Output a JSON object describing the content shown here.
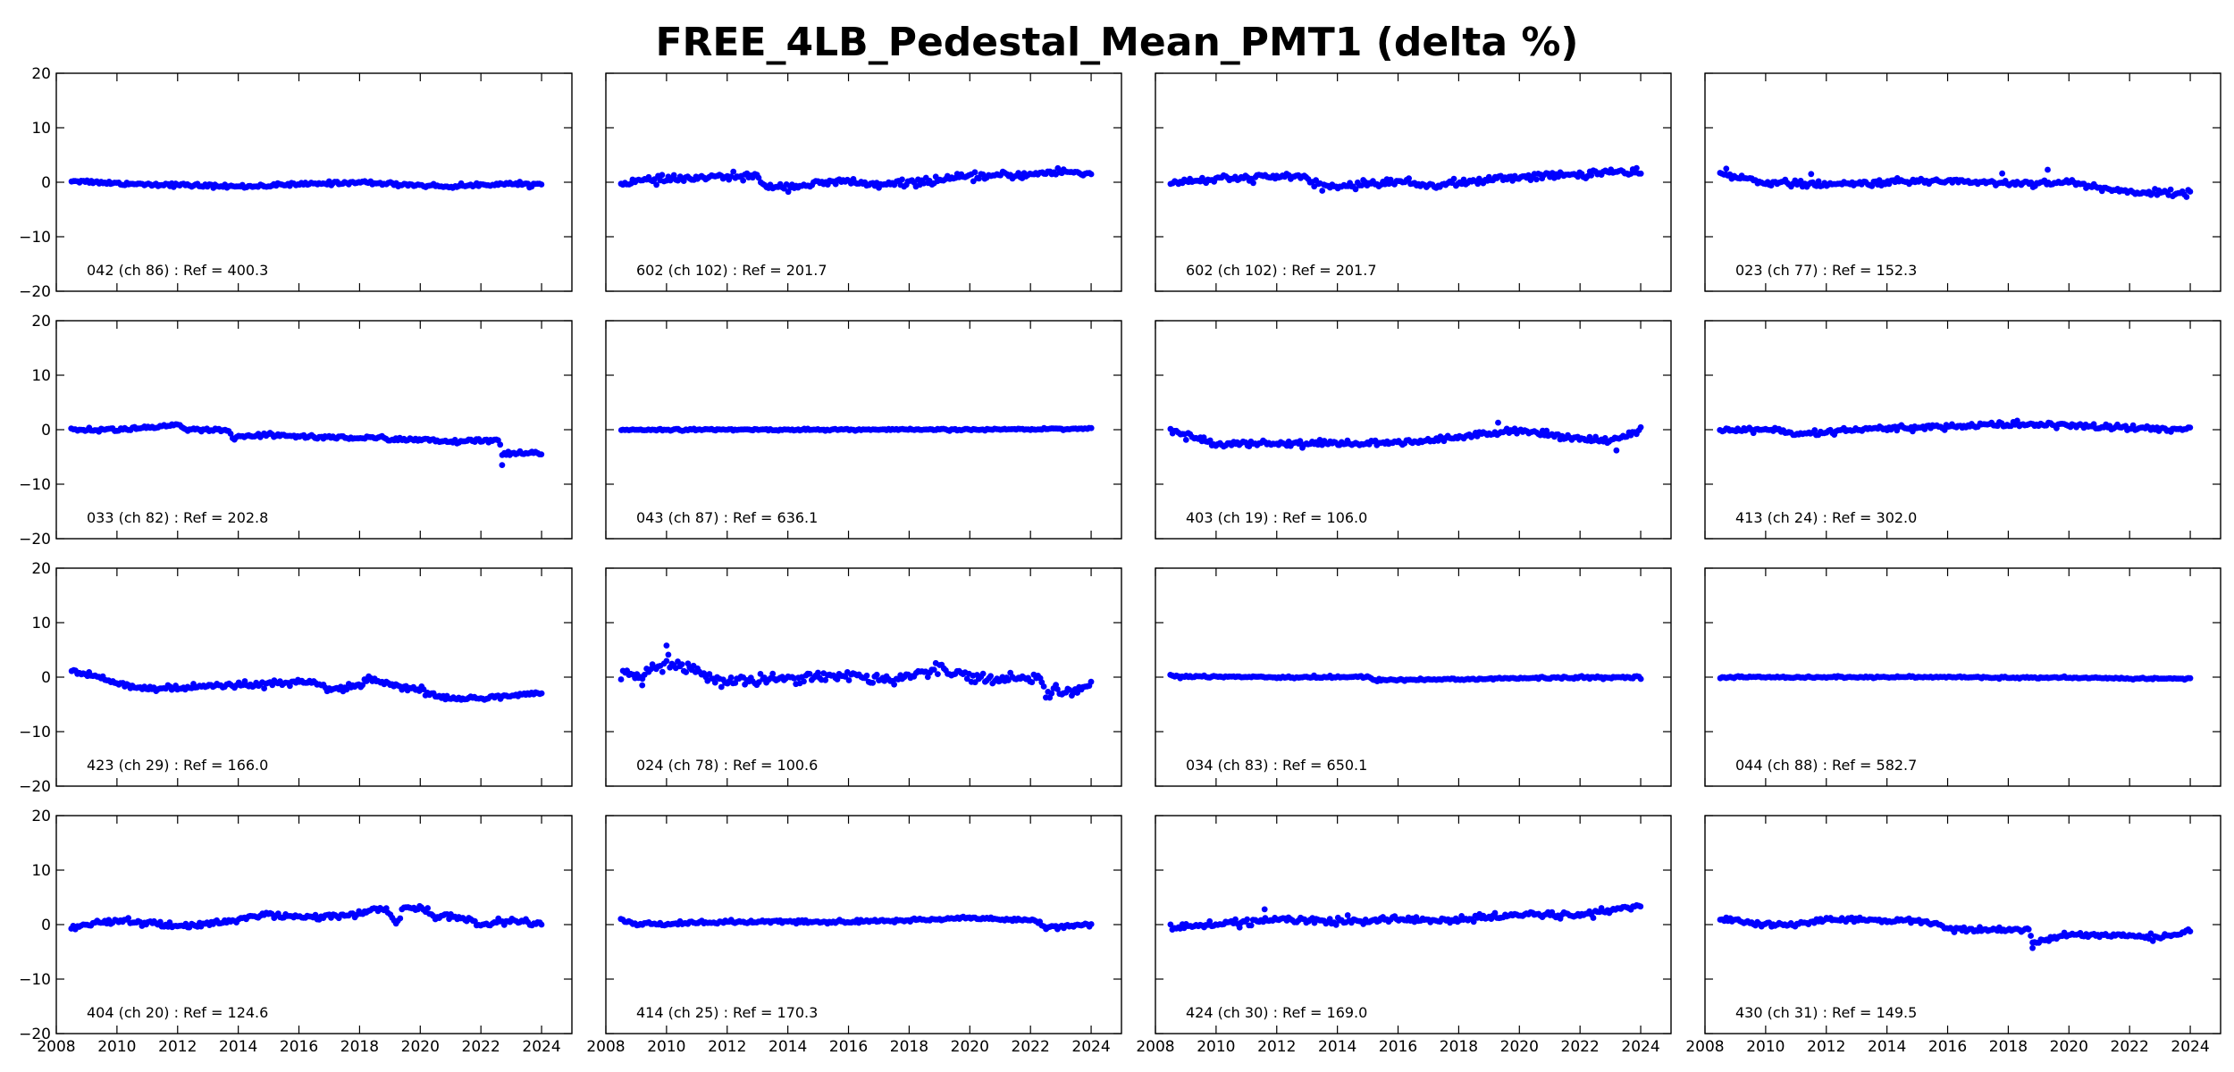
{
  "title": "FREE_4LB_Pedestal_Mean_PMT1 (delta %)",
  "colors": {
    "points": "#0000ff",
    "axes": "#000000",
    "background": "#ffffff"
  },
  "chart_data": [
    {
      "type": "scatter",
      "label": "042 (ch 86) : Ref = 400.3",
      "pattern": "flat",
      "xlim": [
        2008,
        2025
      ],
      "ylim": [
        -20,
        20
      ],
      "xticks": [
        2008,
        2010,
        2012,
        2014,
        2016,
        2018,
        2020,
        2022,
        2024
      ],
      "yticks": [
        -20,
        -10,
        0,
        10,
        20
      ],
      "anchors": [
        [
          2008.5,
          0.3
        ],
        [
          2010,
          -0.2
        ],
        [
          2012,
          -0.5
        ],
        [
          2014,
          -0.8
        ],
        [
          2016,
          -0.4
        ],
        [
          2018,
          0.0
        ],
        [
          2019,
          -0.3
        ],
        [
          2021,
          -0.8
        ],
        [
          2022.5,
          -0.3
        ],
        [
          2024,
          -0.4
        ]
      ],
      "noise": 0.3,
      "spikes": []
    },
    {
      "type": "scatter",
      "label": "602 (ch 102) : Ref = 201.7",
      "pattern": "wavy",
      "xlim": [
        2008,
        2025
      ],
      "ylim": [
        -20,
        20
      ],
      "xticks": [
        2008,
        2010,
        2012,
        2014,
        2016,
        2018,
        2020,
        2022,
        2024
      ],
      "yticks": [
        -20,
        -10,
        0,
        10,
        20
      ],
      "anchors": [
        [
          2008.5,
          0
        ],
        [
          2010,
          0.5
        ],
        [
          2012,
          1.0
        ],
        [
          2013,
          1.2
        ],
        [
          2013.1,
          -0.6
        ],
        [
          2014,
          -0.8
        ],
        [
          2016,
          0.2
        ],
        [
          2017,
          -0.6
        ],
        [
          2019,
          0.4
        ],
        [
          2020,
          1.0
        ],
        [
          2022,
          1.4
        ],
        [
          2023,
          2.0
        ],
        [
          2024,
          1.5
        ]
      ],
      "noise": 0.6,
      "spikes": []
    },
    {
      "type": "scatter",
      "label": "602 (ch 102) : Ref = 201.7",
      "pattern": "wavy",
      "xlim": [
        2008,
        2025
      ],
      "ylim": [
        -20,
        20
      ],
      "xticks": [
        2008,
        2010,
        2012,
        2014,
        2016,
        2018,
        2020,
        2022,
        2024
      ],
      "yticks": [
        -20,
        -10,
        0,
        10,
        20
      ],
      "anchors": [
        [
          2008.5,
          0
        ],
        [
          2010,
          0.5
        ],
        [
          2012,
          1.0
        ],
        [
          2013,
          1.2
        ],
        [
          2013.1,
          -0.6
        ],
        [
          2014,
          -0.8
        ],
        [
          2016,
          0.2
        ],
        [
          2017,
          -0.6
        ],
        [
          2019,
          0.4
        ],
        [
          2020,
          1.0
        ],
        [
          2022,
          1.4
        ],
        [
          2023,
          2.0
        ],
        [
          2024,
          1.5
        ]
      ],
      "noise": 0.6,
      "spikes": []
    },
    {
      "type": "scatter",
      "label": "023 (ch 77) : Ref = 152.3",
      "pattern": "declining",
      "xlim": [
        2008,
        2025
      ],
      "ylim": [
        -20,
        20
      ],
      "xticks": [
        2008,
        2010,
        2012,
        2014,
        2016,
        2018,
        2020,
        2022,
        2024
      ],
      "yticks": [
        -20,
        -10,
        0,
        10,
        20
      ],
      "anchors": [
        [
          2008.5,
          1.5
        ],
        [
          2010,
          0
        ],
        [
          2012,
          -0.5
        ],
        [
          2014,
          0
        ],
        [
          2016,
          0.3
        ],
        [
          2018,
          -0.2
        ],
        [
          2020,
          0
        ],
        [
          2021,
          -1.0
        ],
        [
          2022,
          -1.8
        ],
        [
          2024,
          -2.0
        ]
      ],
      "noise": 0.5,
      "spikes": [
        [
          2008.7,
          2.5
        ],
        [
          2011.5,
          1.5
        ],
        [
          2017.8,
          1.6
        ],
        [
          2019.3,
          2.3
        ]
      ]
    },
    {
      "type": "scatter",
      "label": "033 (ch 82) : Ref = 202.8",
      "pattern": "step-down",
      "xlim": [
        2008,
        2025
      ],
      "ylim": [
        -20,
        20
      ],
      "xticks": [
        2008,
        2010,
        2012,
        2014,
        2016,
        2018,
        2020,
        2022,
        2024
      ],
      "yticks": [
        -20,
        -10,
        0,
        10,
        20
      ],
      "anchors": [
        [
          2008.5,
          0
        ],
        [
          2010,
          0
        ],
        [
          2012,
          0.8
        ],
        [
          2012.2,
          0
        ],
        [
          2013.7,
          -0.2
        ],
        [
          2013.8,
          -1.5
        ],
        [
          2015,
          -1.0
        ],
        [
          2017,
          -1.4
        ],
        [
          2019,
          -1.6
        ],
        [
          2021,
          -2.2
        ],
        [
          2022.6,
          -2.0
        ],
        [
          2022.7,
          -4.5
        ],
        [
          2024,
          -4.3
        ]
      ],
      "noise": 0.35,
      "spikes": [
        [
          2022.7,
          -6.5
        ]
      ]
    },
    {
      "type": "scatter",
      "label": "043 (ch 87) : Ref = 636.1",
      "pattern": "flat",
      "xlim": [
        2008,
        2025
      ],
      "ylim": [
        -20,
        20
      ],
      "xticks": [
        2008,
        2010,
        2012,
        2014,
        2016,
        2018,
        2020,
        2022,
        2024
      ],
      "yticks": [
        -20,
        -10,
        0,
        10,
        20
      ],
      "anchors": [
        [
          2008.5,
          0
        ],
        [
          2012,
          0
        ],
        [
          2016,
          0
        ],
        [
          2020,
          0
        ],
        [
          2024,
          0.2
        ]
      ],
      "noise": 0.15,
      "spikes": []
    },
    {
      "type": "scatter",
      "label": "403 (ch 19) : Ref = 106.0",
      "pattern": "wavy",
      "xlim": [
        2008,
        2025
      ],
      "ylim": [
        -20,
        20
      ],
      "xticks": [
        2008,
        2010,
        2012,
        2014,
        2016,
        2018,
        2020,
        2022,
        2024
      ],
      "yticks": [
        -20,
        -10,
        0,
        10,
        20
      ],
      "anchors": [
        [
          2008.5,
          0
        ],
        [
          2009.3,
          -1.5
        ],
        [
          2010,
          -2.5
        ],
        [
          2012,
          -2.5
        ],
        [
          2014,
          -2.5
        ],
        [
          2016,
          -2.5
        ],
        [
          2018,
          -1.5
        ],
        [
          2019,
          -0.5
        ],
        [
          2020,
          0
        ],
        [
          2020.7,
          -0.8
        ],
        [
          2022,
          -1.5
        ],
        [
          2023,
          -2.0
        ],
        [
          2024,
          -0.3
        ]
      ],
      "noise": 0.5,
      "spikes": [
        [
          2019.3,
          1.3
        ],
        [
          2023.2,
          -3.8
        ]
      ]
    },
    {
      "type": "scatter",
      "label": "413 (ch 24) : Ref = 302.0",
      "pattern": "wavy",
      "xlim": [
        2008,
        2025
      ],
      "ylim": [
        -20,
        20
      ],
      "xticks": [
        2008,
        2010,
        2012,
        2014,
        2016,
        2018,
        2020,
        2022,
        2024
      ],
      "yticks": [
        -20,
        -10,
        0,
        10,
        20
      ],
      "anchors": [
        [
          2008.5,
          -0.3
        ],
        [
          2010,
          0.2
        ],
        [
          2011,
          -1.0
        ],
        [
          2013,
          0
        ],
        [
          2016,
          0.6
        ],
        [
          2018,
          1.0
        ],
        [
          2020,
          0.8
        ],
        [
          2022,
          0.3
        ],
        [
          2024,
          0
        ]
      ],
      "noise": 0.5,
      "spikes": []
    },
    {
      "type": "scatter",
      "label": "423 (ch 29) : Ref = 166.0",
      "pattern": "wavy",
      "xlim": [
        2008,
        2025
      ],
      "ylim": [
        -20,
        20
      ],
      "xticks": [
        2008,
        2010,
        2012,
        2014,
        2016,
        2018,
        2020,
        2022,
        2024
      ],
      "yticks": [
        -20,
        -10,
        0,
        10,
        20
      ],
      "anchors": [
        [
          2008.5,
          1.2
        ],
        [
          2010,
          -1.0
        ],
        [
          2011,
          -2.2
        ],
        [
          2013,
          -1.8
        ],
        [
          2015,
          -1.2
        ],
        [
          2016.5,
          -1.0
        ],
        [
          2017,
          -2.2
        ],
        [
          2018,
          -1.8
        ],
        [
          2018.3,
          -0.2
        ],
        [
          2019,
          -1.5
        ],
        [
          2020,
          -2.5
        ],
        [
          2021,
          -4.0
        ],
        [
          2022,
          -3.8
        ],
        [
          2024,
          -3.0
        ]
      ],
      "noise": 0.5,
      "spikes": []
    },
    {
      "type": "scatter",
      "label": "024 (ch 78) : Ref = 100.6",
      "pattern": "noisy",
      "xlim": [
        2008,
        2025
      ],
      "ylim": [
        -20,
        20
      ],
      "xticks": [
        2008,
        2010,
        2012,
        2014,
        2016,
        2018,
        2020,
        2022,
        2024
      ],
      "yticks": [
        -20,
        -10,
        0,
        10,
        20
      ],
      "anchors": [
        [
          2008.5,
          0.5
        ],
        [
          2009,
          0
        ],
        [
          2010,
          3.0
        ],
        [
          2011,
          1.0
        ],
        [
          2012,
          -1.0
        ],
        [
          2014,
          0
        ],
        [
          2016,
          0.3
        ],
        [
          2017.5,
          -0.5
        ],
        [
          2019,
          1.5
        ],
        [
          2020,
          0.5
        ],
        [
          2021,
          -0.5
        ],
        [
          2022.4,
          0
        ],
        [
          2022.5,
          -3.0
        ],
        [
          2023.5,
          -2.5
        ],
        [
          2024,
          -1.5
        ]
      ],
      "noise": 0.9,
      "spikes": [
        [
          2010,
          5.8
        ],
        [
          2009.2,
          -1.5
        ]
      ]
    },
    {
      "type": "scatter",
      "label": "034 (ch 83) : Ref = 650.1",
      "pattern": "flat",
      "xlim": [
        2008,
        2025
      ],
      "ylim": [
        -20,
        20
      ],
      "xticks": [
        2008,
        2010,
        2012,
        2014,
        2016,
        2018,
        2020,
        2022,
        2024
      ],
      "yticks": [
        -20,
        -10,
        0,
        10,
        20
      ],
      "anchors": [
        [
          2008.5,
          0.2
        ],
        [
          2012,
          0
        ],
        [
          2015,
          0
        ],
        [
          2015.2,
          -0.5
        ],
        [
          2018,
          -0.4
        ],
        [
          2020,
          -0.2
        ],
        [
          2024,
          0
        ]
      ],
      "noise": 0.2,
      "spikes": []
    },
    {
      "type": "scatter",
      "label": "044 (ch 88) : Ref = 582.7",
      "pattern": "flat",
      "xlim": [
        2008,
        2025
      ],
      "ylim": [
        -20,
        20
      ],
      "xticks": [
        2008,
        2010,
        2012,
        2014,
        2016,
        2018,
        2020,
        2022,
        2024
      ],
      "yticks": [
        -20,
        -10,
        0,
        10,
        20
      ],
      "anchors": [
        [
          2008.5,
          0
        ],
        [
          2016,
          0
        ],
        [
          2024,
          -0.3
        ]
      ],
      "noise": 0.15,
      "spikes": []
    },
    {
      "type": "scatter",
      "label": "404 (ch 20) : Ref = 124.6",
      "pattern": "wavy",
      "xlim": [
        2008,
        2025
      ],
      "ylim": [
        -20,
        20
      ],
      "xticks": [
        2008,
        2010,
        2012,
        2014,
        2016,
        2018,
        2020,
        2022,
        2024
      ],
      "yticks": [
        -20,
        -10,
        0,
        10,
        20
      ],
      "anchors": [
        [
          2008.5,
          -0.5
        ],
        [
          2010,
          0.8
        ],
        [
          2012,
          -0.3
        ],
        [
          2014,
          0.8
        ],
        [
          2015,
          2.0
        ],
        [
          2016,
          1.2
        ],
        [
          2018,
          2.0
        ],
        [
          2018.8,
          3.0
        ],
        [
          2019.2,
          0.5
        ],
        [
          2019.5,
          3.0
        ],
        [
          2020.2,
          3.0
        ],
        [
          2020.4,
          1.5
        ],
        [
          2021,
          1.5
        ],
        [
          2022,
          0
        ],
        [
          2023,
          0.8
        ],
        [
          2024,
          0
        ]
      ],
      "noise": 0.5,
      "spikes": []
    },
    {
      "type": "scatter",
      "label": "414 (ch 25) : Ref = 170.3",
      "pattern": "flat",
      "xlim": [
        2008,
        2025
      ],
      "ylim": [
        -20,
        20
      ],
      "xticks": [
        2008,
        2010,
        2012,
        2014,
        2016,
        2018,
        2020,
        2022,
        2024
      ],
      "yticks": [
        -20,
        -10,
        0,
        10,
        20
      ],
      "anchors": [
        [
          2008.5,
          1.0
        ],
        [
          2009,
          0
        ],
        [
          2012,
          0.5
        ],
        [
          2016,
          0.5
        ],
        [
          2018,
          0.8
        ],
        [
          2020,
          1.2
        ],
        [
          2022.3,
          0.8
        ],
        [
          2022.4,
          -0.6
        ],
        [
          2024,
          0
        ]
      ],
      "noise": 0.3,
      "spikes": []
    },
    {
      "type": "scatter",
      "label": "424 (ch 30) : Ref = 169.0",
      "pattern": "rising",
      "xlim": [
        2008,
        2025
      ],
      "ylim": [
        -20,
        20
      ],
      "xticks": [
        2008,
        2010,
        2012,
        2014,
        2016,
        2018,
        2020,
        2022,
        2024
      ],
      "yticks": [
        -20,
        -10,
        0,
        10,
        20
      ],
      "anchors": [
        [
          2008.5,
          -0.5
        ],
        [
          2010,
          0
        ],
        [
          2012,
          1.0
        ],
        [
          2014,
          0.5
        ],
        [
          2016,
          1.0
        ],
        [
          2018,
          0.8
        ],
        [
          2020,
          1.8
        ],
        [
          2022,
          1.8
        ],
        [
          2024,
          3.5
        ]
      ],
      "noise": 0.55,
      "spikes": [
        [
          2011.6,
          2.8
        ]
      ]
    },
    {
      "type": "scatter",
      "label": "430 (ch 31) : Ref = 149.5",
      "pattern": "step-down",
      "xlim": [
        2008,
        2025
      ],
      "ylim": [
        -20,
        20
      ],
      "xticks": [
        2008,
        2010,
        2012,
        2014,
        2016,
        2018,
        2020,
        2022,
        2024
      ],
      "yticks": [
        -20,
        -10,
        0,
        10,
        20
      ],
      "anchors": [
        [
          2008.5,
          1.0
        ],
        [
          2010,
          0
        ],
        [
          2011,
          0
        ],
        [
          2012,
          1.0
        ],
        [
          2014,
          0.8
        ],
        [
          2015.5,
          0.5
        ],
        [
          2016,
          -0.8
        ],
        [
          2018,
          -1.0
        ],
        [
          2018.7,
          -0.8
        ],
        [
          2018.8,
          -3.5
        ],
        [
          2020,
          -1.8
        ],
        [
          2022,
          -2.0
        ],
        [
          2023,
          -2.5
        ],
        [
          2024,
          -1.0
        ]
      ],
      "noise": 0.4,
      "spikes": [
        [
          2018.8,
          -4.3
        ]
      ]
    }
  ]
}
